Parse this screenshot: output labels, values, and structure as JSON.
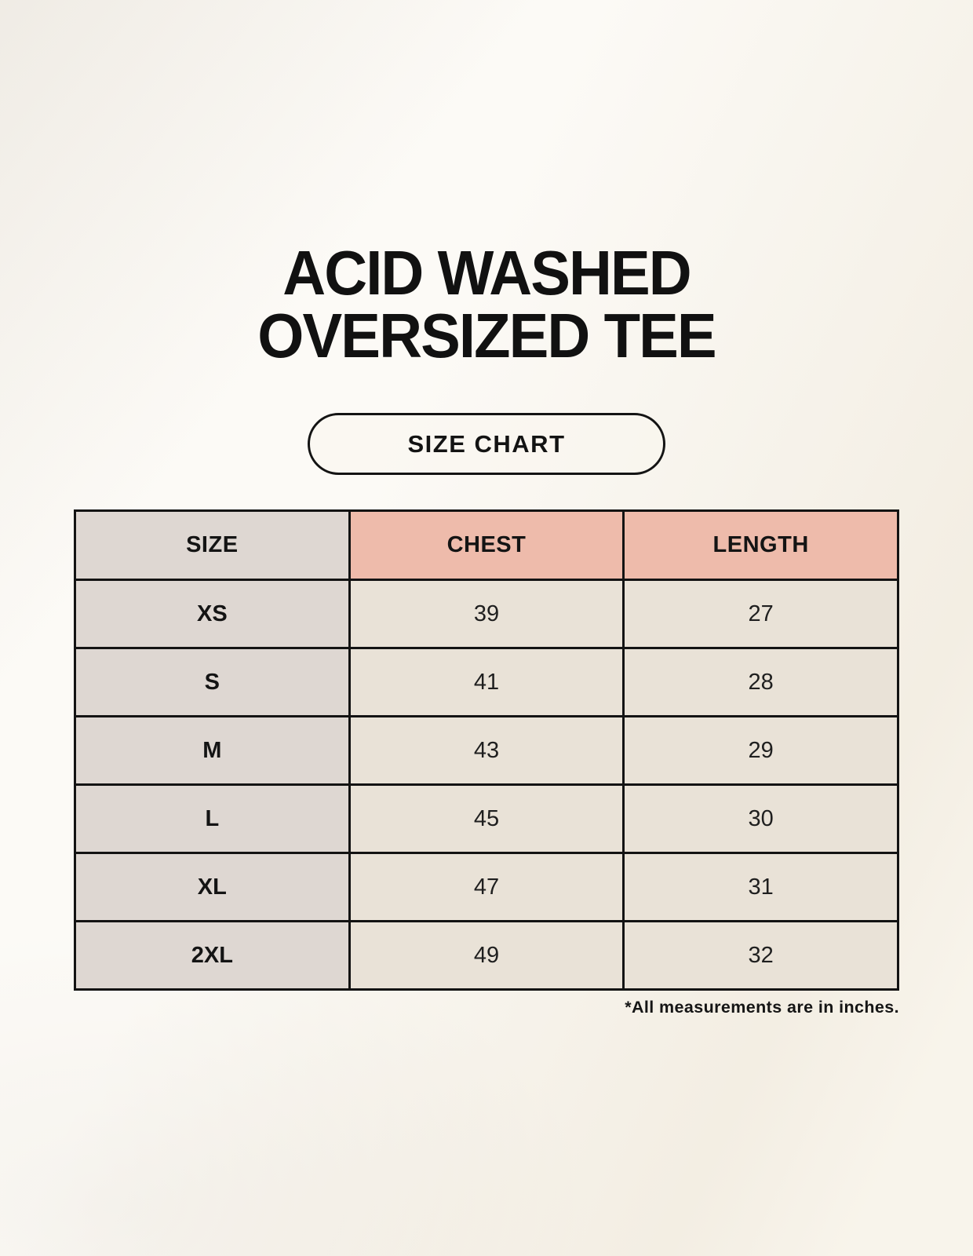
{
  "page": {
    "title_line1": "ACID WASHED",
    "title_line2": "OVERSIZED TEE",
    "badge_label": "SIZE CHART",
    "footnote": "*All measurements are in inches."
  },
  "colors": {
    "background": "#f8f4eb",
    "header_accent_salmon": "#eebbab",
    "size_column_gray": "#ded7d2",
    "data_cell_beige": "#e9e2d7",
    "table_border": "#131313",
    "text": "#141414"
  },
  "chart_data": {
    "type": "table",
    "title": "ACID WASHED OVERSIZED TEE — SIZE CHART",
    "columns": [
      "SIZE",
      "CHEST",
      "LENGTH"
    ],
    "units": "inches",
    "rows": [
      {
        "size": "XS",
        "chest": 39,
        "length": 27
      },
      {
        "size": "S",
        "chest": 41,
        "length": 28
      },
      {
        "size": "M",
        "chest": 43,
        "length": 29
      },
      {
        "size": "L",
        "chest": 45,
        "length": 30
      },
      {
        "size": "XL",
        "chest": 47,
        "length": 31
      },
      {
        "size": "2XL",
        "chest": 49,
        "length": 32
      }
    ]
  }
}
